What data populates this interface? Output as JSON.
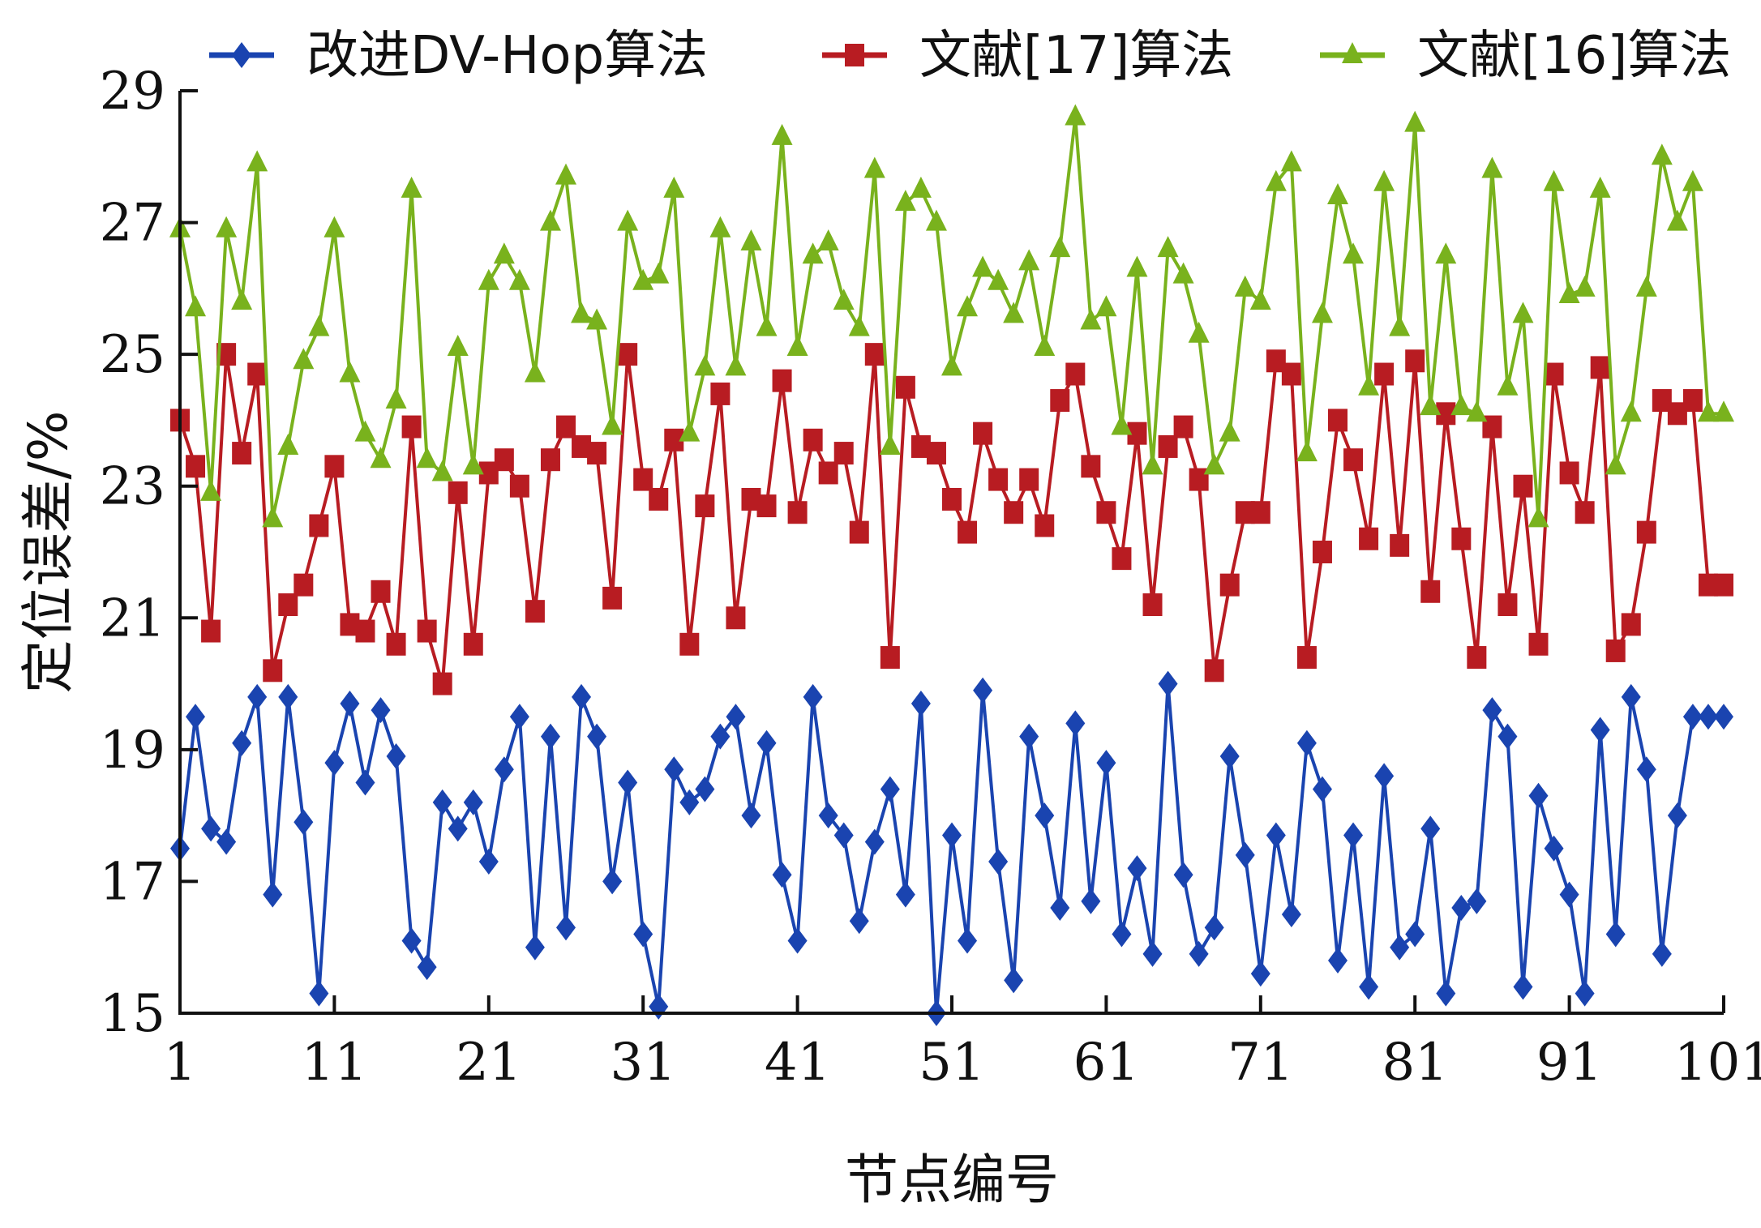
{
  "chart_data": {
    "type": "line",
    "title": "",
    "xlabel": "节点编号",
    "ylabel": "定位误差/%",
    "xlim": [
      1,
      101
    ],
    "ylim": [
      15,
      29
    ],
    "x_ticks": [
      1,
      11,
      21,
      31,
      41,
      51,
      61,
      71,
      81,
      91,
      101
    ],
    "y_ticks": [
      15,
      17,
      19,
      21,
      23,
      25,
      27,
      29
    ],
    "grid": false,
    "legend_position": "top",
    "x": [
      1,
      2,
      3,
      4,
      5,
      6,
      7,
      8,
      9,
      10,
      11,
      12,
      13,
      14,
      15,
      16,
      17,
      18,
      19,
      20,
      21,
      22,
      23,
      24,
      25,
      26,
      27,
      28,
      29,
      30,
      31,
      32,
      33,
      34,
      35,
      36,
      37,
      38,
      39,
      40,
      41,
      42,
      43,
      44,
      45,
      46,
      47,
      48,
      49,
      50,
      51,
      52,
      53,
      54,
      55,
      56,
      57,
      58,
      59,
      60,
      61,
      62,
      63,
      64,
      65,
      66,
      67,
      68,
      69,
      70,
      71,
      72,
      73,
      74,
      75,
      76,
      77,
      78,
      79,
      80,
      81,
      82,
      83,
      84,
      85,
      86,
      87,
      88,
      89,
      90,
      91,
      92,
      93,
      94,
      95,
      96,
      97,
      98,
      99,
      100,
      101
    ],
    "series": [
      {
        "name": "改进DV-Hop算法",
        "color": "#1a44b0",
        "marker": "diamond",
        "values": [
          17.5,
          19.5,
          17.8,
          17.6,
          19.1,
          19.8,
          16.8,
          19.8,
          17.9,
          15.3,
          18.8,
          19.7,
          18.5,
          19.6,
          18.9,
          16.1,
          15.7,
          18.2,
          17.8,
          18.2,
          17.3,
          18.7,
          19.5,
          16.0,
          19.2,
          16.3,
          19.8,
          19.2,
          17.0,
          18.5,
          16.2,
          15.1,
          18.7,
          18.2,
          18.4,
          19.2,
          19.5,
          18.0,
          19.1,
          17.1,
          16.1,
          19.8,
          18.0,
          17.7,
          16.4,
          17.6,
          18.4,
          16.8,
          19.7,
          15.0,
          17.7,
          16.1,
          19.9,
          17.3,
          15.5,
          19.2,
          18.0,
          16.6,
          19.4,
          16.7,
          18.8,
          16.2,
          17.2,
          15.9,
          20.0,
          17.1,
          15.9,
          16.3,
          18.9,
          17.4,
          15.6,
          17.7,
          16.5,
          19.1,
          18.4,
          15.8,
          17.7,
          15.4,
          18.6,
          16.0,
          16.2,
          17.8,
          15.3,
          16.6,
          16.7,
          19.6,
          19.2,
          15.4,
          18.3,
          17.5,
          16.8,
          15.3,
          19.3,
          16.2,
          19.8,
          18.7,
          15.9,
          18.0,
          19.5,
          19.5,
          19.5
        ]
      },
      {
        "name": "文献[17]算法",
        "color": "#b81c22",
        "marker": "square",
        "values": [
          24.0,
          23.3,
          20.8,
          25.0,
          23.5,
          24.7,
          20.2,
          21.2,
          21.5,
          22.4,
          23.3,
          20.9,
          20.8,
          21.4,
          20.6,
          23.9,
          20.8,
          20.0,
          22.9,
          20.6,
          23.2,
          23.4,
          23.0,
          21.1,
          23.4,
          23.9,
          23.6,
          23.5,
          21.3,
          25.0,
          23.1,
          22.8,
          23.7,
          20.6,
          22.7,
          24.4,
          21.0,
          22.8,
          22.7,
          24.6,
          22.6,
          23.7,
          23.2,
          23.5,
          22.3,
          25.0,
          20.4,
          24.5,
          23.6,
          23.5,
          22.8,
          22.3,
          23.8,
          23.1,
          22.6,
          23.1,
          22.4,
          24.3,
          24.7,
          23.3,
          22.6,
          21.9,
          23.8,
          21.2,
          23.6,
          23.9,
          23.1,
          20.2,
          21.5,
          22.6,
          22.6,
          24.9,
          24.7,
          20.4,
          22.0,
          24.0,
          23.4,
          22.2,
          24.7,
          22.1,
          24.9,
          21.4,
          24.1,
          22.2,
          20.4,
          23.9,
          21.2,
          23.0,
          20.6,
          24.7,
          23.2,
          22.6,
          24.8,
          20.5,
          20.9,
          22.3,
          24.3,
          24.1,
          24.3,
          21.5,
          21.5
        ]
      },
      {
        "name": "文献[16]算法",
        "color": "#79b21d",
        "marker": "triangle",
        "values": [
          26.9,
          25.7,
          22.9,
          26.9,
          25.8,
          27.9,
          22.5,
          23.6,
          24.9,
          25.4,
          26.9,
          24.7,
          23.8,
          23.4,
          24.3,
          27.5,
          23.4,
          23.2,
          25.1,
          23.3,
          26.1,
          26.5,
          26.1,
          24.7,
          27.0,
          27.7,
          25.6,
          25.5,
          23.9,
          27.0,
          26.1,
          26.2,
          27.5,
          23.8,
          24.8,
          26.9,
          24.8,
          26.7,
          25.4,
          28.3,
          25.1,
          26.5,
          26.7,
          25.8,
          25.4,
          27.8,
          23.6,
          27.3,
          27.5,
          27.0,
          24.8,
          25.7,
          26.3,
          26.1,
          25.6,
          26.4,
          25.1,
          26.6,
          28.6,
          25.5,
          25.7,
          23.9,
          26.3,
          23.3,
          26.6,
          26.2,
          25.3,
          23.3,
          23.8,
          26.0,
          25.8,
          27.6,
          27.9,
          23.5,
          25.6,
          27.4,
          26.5,
          24.5,
          27.6,
          25.4,
          28.5,
          24.2,
          26.5,
          24.2,
          24.1,
          27.8,
          24.5,
          25.6,
          22.5,
          27.6,
          25.9,
          26.0,
          27.5,
          23.3,
          24.1,
          26.0,
          28.0,
          27.0,
          27.6,
          24.1,
          24.1
        ]
      }
    ]
  }
}
